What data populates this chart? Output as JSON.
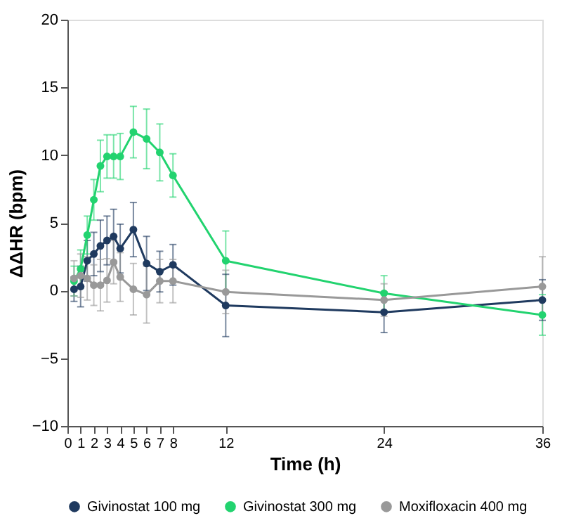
{
  "chart_data": {
    "type": "line",
    "xlabel": "Time (h)",
    "ylabel": "ΔΔHR (bpm)",
    "x": [
      0.5,
      1,
      1.5,
      2,
      2.5,
      3,
      3.5,
      4,
      5,
      6,
      7,
      8,
      12,
      24,
      36
    ],
    "xlim": [
      0,
      36
    ],
    "xticks": [
      0,
      1,
      2,
      3,
      4,
      5,
      6,
      7,
      8,
      12,
      24,
      36
    ],
    "ylim": [
      -10,
      20
    ],
    "yticks": [
      -10,
      -5,
      0,
      5,
      10,
      15,
      20
    ],
    "grid": false,
    "legend": "bottom",
    "marker": "circle",
    "line_style": "solid",
    "series": [
      {
        "name": "Givinostat 100 mg",
        "color": "#1f3a5f",
        "values": [
          0.1,
          0.3,
          2.2,
          2.7,
          3.3,
          3.7,
          4.0,
          3.1,
          4.5,
          2.0,
          1.4,
          1.9,
          -1.1,
          -1.6,
          -0.7
        ],
        "errors": [
          0.9,
          1.5,
          1.5,
          1.6,
          1.9,
          1.8,
          2.0,
          1.8,
          2.0,
          2.0,
          1.5,
          1.5,
          2.3,
          1.5,
          1.5
        ]
      },
      {
        "name": "Givinostat 300 mg",
        "color": "#22d36f",
        "values": [
          0.7,
          1.6,
          4.1,
          6.7,
          9.2,
          9.9,
          9.9,
          9.9,
          11.7,
          11.2,
          10.2,
          8.5,
          2.2,
          -0.2,
          -1.8
        ],
        "errors": [
          1.1,
          1.4,
          1.4,
          1.5,
          1.9,
          1.6,
          1.6,
          1.7,
          1.9,
          2.2,
          2.1,
          1.6,
          2.2,
          1.3,
          1.5
        ]
      },
      {
        "name": "Moxifloxacin 400 mg",
        "color": "#999999",
        "values": [
          0.9,
          1.1,
          0.9,
          0.4,
          0.4,
          0.75,
          2.1,
          1.0,
          0.1,
          -0.3,
          0.7,
          0.7,
          -0.1,
          -0.7,
          0.3
        ],
        "errors": [
          1.3,
          1.6,
          1.6,
          1.5,
          1.9,
          1.6,
          1.6,
          1.8,
          1.9,
          2.1,
          1.6,
          1.6,
          1.6,
          1.2,
          2.2
        ]
      }
    ]
  }
}
